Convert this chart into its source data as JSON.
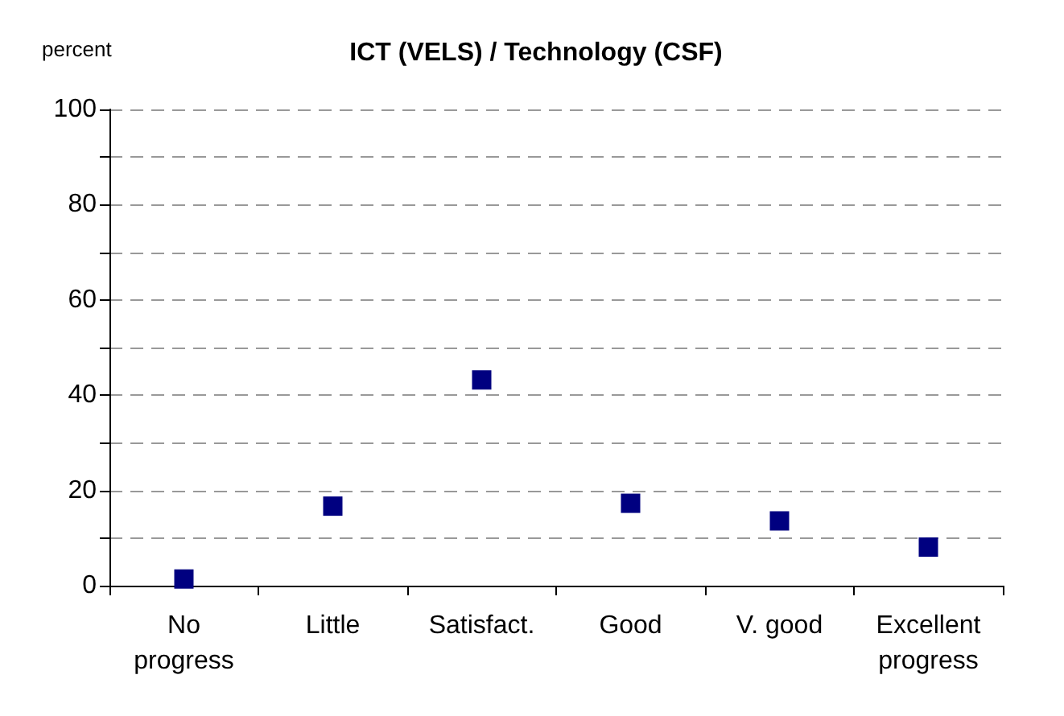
{
  "chart_data": {
    "type": "scatter",
    "title": "ICT (VELS) / Technology (CSF)",
    "ylabel": "percent",
    "categories": [
      "No\nprogress",
      "Little",
      "Satisfact.",
      "Good",
      "V. good",
      "Excellent\nprogress"
    ],
    "series": [
      {
        "color": "#000080",
        "values": [
          1.4,
          16.7,
          43.2,
          17.3,
          13.6,
          8.1
        ]
      }
    ],
    "ylim": [
      0,
      100
    ],
    "yticks": [
      0,
      {
        "value": 10,
        "label": null
      },
      20,
      {
        "value": 30,
        "label": null
      },
      40,
      {
        "value": 50,
        "label": null
      },
      60,
      {
        "value": 70,
        "label": null
      },
      80,
      {
        "value": 90,
        "label": null
      },
      100
    ],
    "grid": "y",
    "marker": "square"
  }
}
